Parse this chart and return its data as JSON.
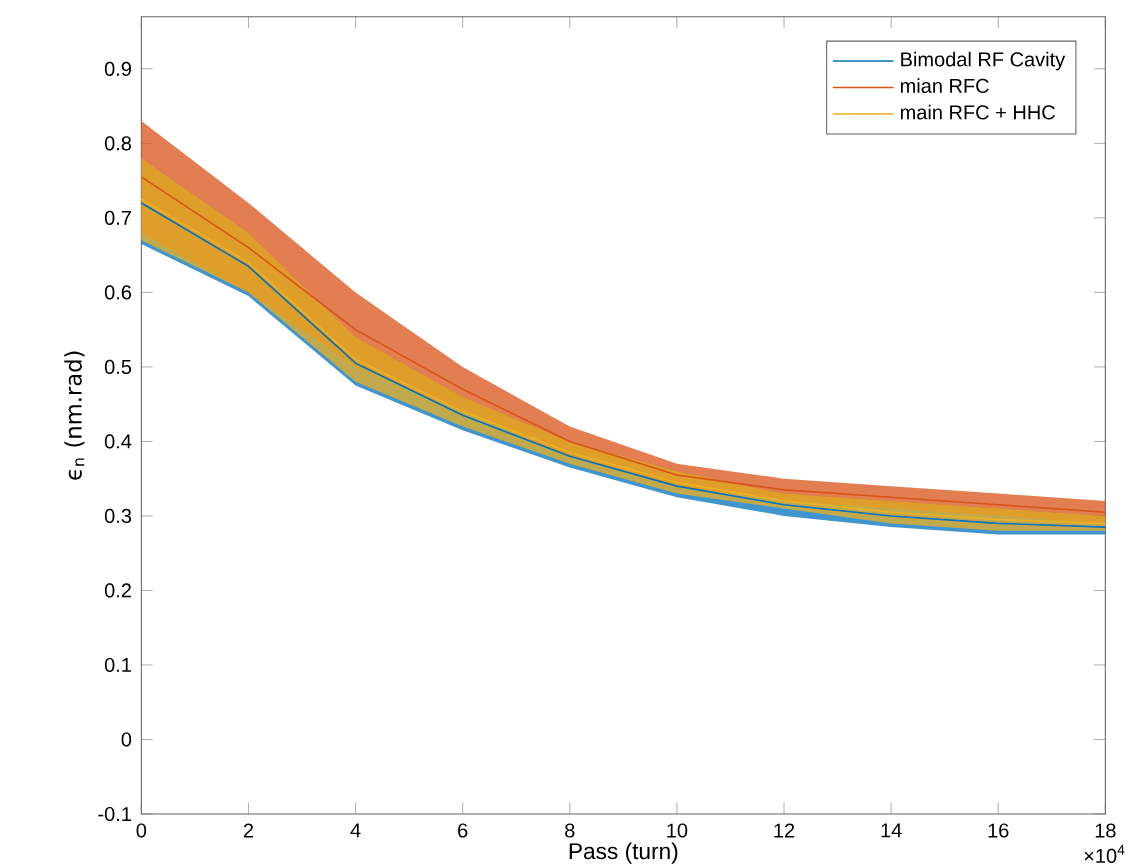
{
  "chart_data": {
    "type": "line",
    "xlabel": "Pass (turn)",
    "ylabel": "ϵ$_{n}$ (nm.rad)",
    "x": [
      0,
      2,
      4,
      6,
      8,
      10,
      12,
      14,
      16,
      18
    ],
    "xlim": [
      0,
      18
    ],
    "xticks": [
      0,
      2,
      4,
      6,
      8,
      10,
      12,
      14,
      16,
      18
    ],
    "ylim": [
      -0.1,
      0.97
    ],
    "yticks": [
      -0.1,
      0,
      0.1,
      0.2,
      0.3,
      0.4,
      0.5,
      0.6,
      0.7,
      0.8,
      0.9
    ],
    "series": [
      {
        "name": "Bimodal RF Cavity",
        "color": "#0072bd",
        "values": [
          0.72,
          0.635,
          0.505,
          0.435,
          0.38,
          0.34,
          0.315,
          0.3,
          0.29,
          0.285
        ],
        "lower": [
          0.665,
          0.595,
          0.475,
          0.415,
          0.365,
          0.325,
          0.3,
          0.285,
          0.275,
          0.275
        ],
        "upper": [
          0.78,
          0.68,
          0.54,
          0.46,
          0.4,
          0.36,
          0.33,
          0.32,
          0.31,
          0.3
        ]
      },
      {
        "name": "mian RFC",
        "color": "#d95319",
        "values": [
          0.755,
          0.66,
          0.55,
          0.47,
          0.4,
          0.355,
          0.335,
          0.325,
          0.315,
          0.305
        ],
        "lower": [
          0.68,
          0.6,
          0.5,
          0.44,
          0.38,
          0.34,
          0.32,
          0.31,
          0.3,
          0.29
        ],
        "upper": [
          0.83,
          0.72,
          0.6,
          0.5,
          0.42,
          0.37,
          0.35,
          0.34,
          0.33,
          0.32
        ]
      },
      {
        "name": "main RFC + HHC",
        "color": "#edb120",
        "values": [
          0.725,
          0.64,
          0.51,
          0.44,
          0.385,
          0.345,
          0.32,
          0.305,
          0.295,
          0.29
        ],
        "lower": [
          0.67,
          0.6,
          0.48,
          0.42,
          0.37,
          0.33,
          0.31,
          0.29,
          0.28,
          0.28
        ],
        "upper": [
          0.78,
          0.68,
          0.54,
          0.46,
          0.4,
          0.36,
          0.33,
          0.32,
          0.31,
          0.3
        ]
      }
    ],
    "legend": "top right",
    "grid": false,
    "marker": "none",
    "line_style": "solid",
    "annotations": [
      "×10$^{4}$"
    ]
  }
}
